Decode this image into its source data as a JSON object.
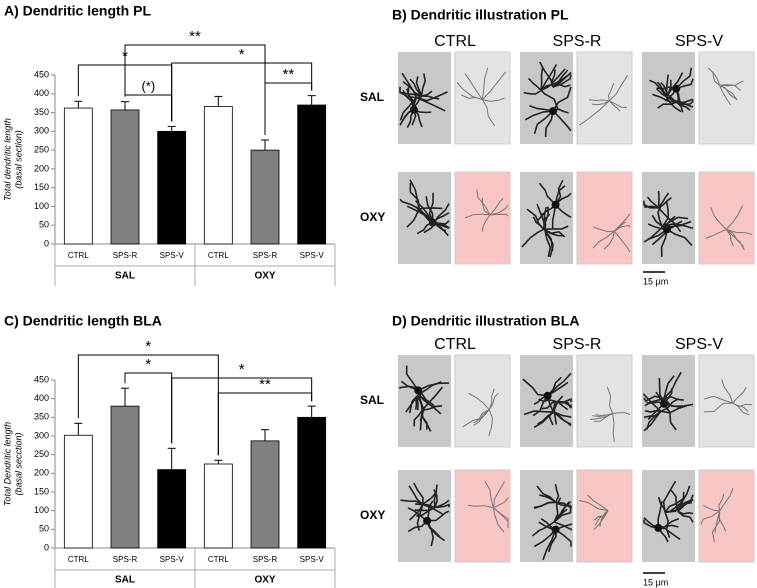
{
  "chart_data": [
    {
      "type": "bar",
      "title": "A) Dendritic length PL",
      "ylabel": [
        "Total dendritic length",
        "(basal section)"
      ],
      "categories": [
        "CTRL",
        "SPS-R",
        "SPS-V",
        "CTRL",
        "SPS-R",
        "SPS-V"
      ],
      "groups": [
        "SAL",
        "OXY"
      ],
      "values": [
        362,
        357,
        300,
        366,
        250,
        370
      ],
      "errors": [
        18,
        22,
        13,
        27,
        27,
        25
      ],
      "colors": [
        "#ffffff",
        "#808080",
        "#000000",
        "#ffffff",
        "#808080",
        "#000000"
      ],
      "ylim": [
        0,
        450
      ],
      "yticks": [
        0,
        50,
        100,
        150,
        200,
        250,
        300,
        350,
        400,
        450
      ],
      "annotations": [
        {
          "label": "*",
          "bars": [
            0,
            2
          ]
        },
        {
          "label": "**",
          "bars": [
            1,
            4
          ]
        },
        {
          "label": "(*)",
          "bars": [
            1,
            2
          ]
        },
        {
          "label": "*",
          "bars": [
            2,
            5
          ]
        },
        {
          "label": "**",
          "bars": [
            4,
            5
          ]
        }
      ]
    },
    {
      "type": "bar",
      "title": "C) Dendritic length BLA",
      "ylabel": [
        "Total Dendritic length",
        "(basal secction)"
      ],
      "categories": [
        "CTRL",
        "SPS-R",
        "SPS-V",
        "CTRL",
        "SPS-R",
        "SPS-V"
      ],
      "groups": [
        "SAL",
        "OXY"
      ],
      "values": [
        302,
        380,
        210,
        225,
        287,
        350
      ],
      "errors": [
        32,
        48,
        57,
        10,
        30,
        30
      ],
      "colors": [
        "#ffffff",
        "#808080",
        "#000000",
        "#ffffff",
        "#808080",
        "#000000"
      ],
      "ylim": [
        0,
        450
      ],
      "yticks": [
        0,
        50,
        100,
        150,
        200,
        250,
        300,
        350,
        400,
        450
      ],
      "annotations": [
        {
          "label": "*",
          "bars": [
            0,
            3
          ]
        },
        {
          "label": "*",
          "bars": [
            1,
            2
          ]
        },
        {
          "label": "*",
          "bars": [
            2,
            5
          ]
        },
        {
          "label": "**",
          "bars": [
            3,
            5
          ]
        }
      ]
    }
  ],
  "illustrations": [
    {
      "title": "B) Dendritic illustration PL",
      "columns": [
        "CTRL",
        "SPS-R",
        "SPS-V"
      ],
      "rows": [
        "SAL",
        "OXY"
      ],
      "scale": "15 µm"
    },
    {
      "title": "D) Dendritic illustration BLA",
      "columns": [
        "CTRL",
        "SPS-R",
        "SPS-V"
      ],
      "rows": [
        "SAL",
        "OXY"
      ],
      "scale": "15 µm"
    }
  ]
}
